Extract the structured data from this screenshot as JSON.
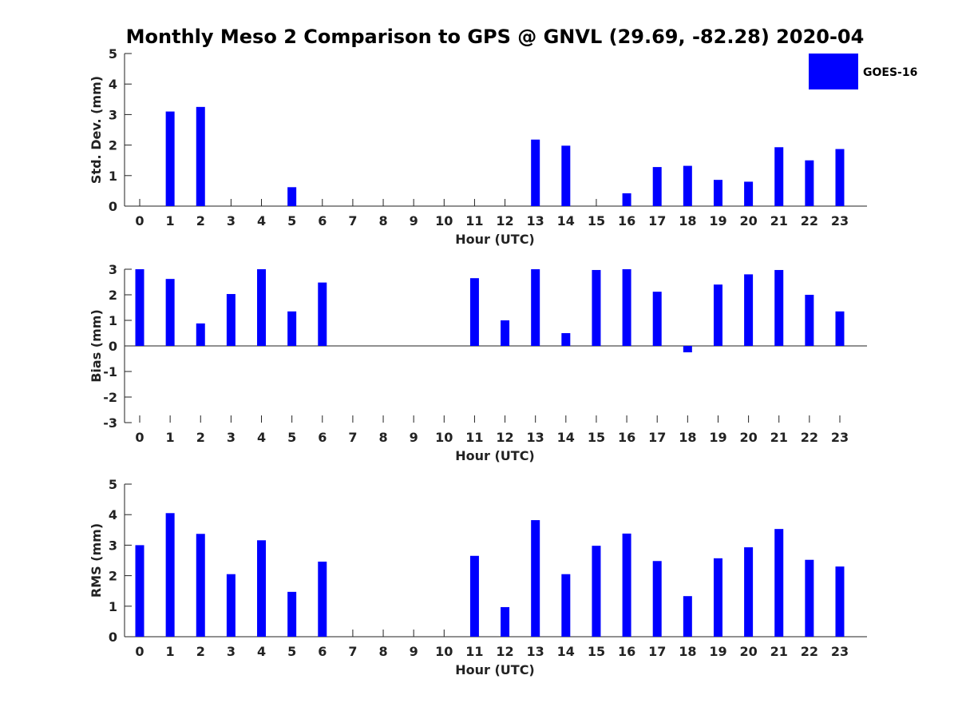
{
  "chart_data": {
    "type": "bar",
    "title": "Monthly Meso 2 Comparison to GPS @ GNVL (29.69, -82.28) 2020-04",
    "legend": {
      "label": "GOES-16",
      "color": "#0000ff",
      "placement": "top-right"
    },
    "bar_color": "#0000ff",
    "categories": [
      "0",
      "1",
      "2",
      "3",
      "4",
      "5",
      "6",
      "7",
      "8",
      "9",
      "10",
      "11",
      "12",
      "13",
      "14",
      "15",
      "16",
      "17",
      "18",
      "19",
      "20",
      "21",
      "22",
      "23"
    ],
    "panels": [
      {
        "id": "std",
        "xlabel": "Hour (UTC)",
        "ylabel": "Std. Dev. (mm)",
        "ylim": [
          0,
          5
        ],
        "yticks": [
          0,
          1,
          2,
          3,
          4,
          5
        ],
        "values": [
          0,
          3.1,
          3.25,
          0,
          0,
          0.62,
          0,
          0,
          0,
          0,
          0,
          0,
          0,
          2.18,
          1.98,
          0,
          0.42,
          1.28,
          1.32,
          0.86,
          0.8,
          1.93,
          1.5,
          1.87
        ]
      },
      {
        "id": "bias",
        "xlabel": "Hour (UTC)",
        "ylabel": "Bias (mm)",
        "ylim": [
          -3,
          3
        ],
        "yticks": [
          -3,
          -2,
          -1,
          0,
          1,
          2,
          3
        ],
        "values": [
          3.0,
          2.62,
          0.88,
          2.03,
          3.0,
          1.35,
          2.48,
          0,
          0,
          0,
          0,
          2.65,
          1.0,
          3.0,
          0.5,
          2.97,
          3.0,
          2.12,
          -0.25,
          2.4,
          2.8,
          2.97,
          2.0,
          1.35
        ]
      },
      {
        "id": "rms",
        "xlabel": "Hour (UTC)",
        "ylabel": "RMS (mm)",
        "ylim": [
          0,
          5
        ],
        "yticks": [
          0,
          1,
          2,
          3,
          4,
          5
        ],
        "values": [
          3.0,
          4.05,
          3.37,
          2.05,
          3.16,
          1.47,
          2.46,
          0,
          0,
          0,
          0,
          2.65,
          0.97,
          3.82,
          2.05,
          2.98,
          3.38,
          2.48,
          1.33,
          2.57,
          2.93,
          3.53,
          2.52,
          2.3
        ]
      }
    ]
  }
}
